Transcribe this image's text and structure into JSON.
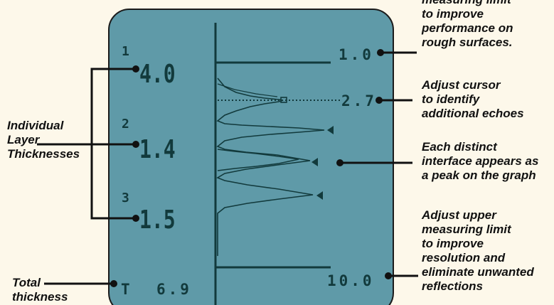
{
  "layers": [
    {
      "index_label": "1",
      "value": "4.0"
    },
    {
      "index_label": "2",
      "value": "1.4"
    },
    {
      "index_label": "3",
      "value": "1.5"
    }
  ],
  "total": {
    "symbol": "T",
    "value": "6.9"
  },
  "scale": {
    "lower_limit": "1.0",
    "cursor": "2.7",
    "upper_limit": "10.0"
  },
  "annotations": {
    "layers": [
      "Individual",
      "Layer",
      "Thicknesses"
    ],
    "total": [
      "Total",
      "thickness"
    ],
    "lower_limit": [
      "measuring limit",
      "to improve",
      "performance on",
      "rough surfaces."
    ],
    "cursor": [
      "Adjust cursor",
      "to identify",
      "additional echoes"
    ],
    "peaks": [
      "Each distinct",
      "interface appears as",
      "a peak on the graph"
    ],
    "upper_limit": [
      "Adjust upper",
      "measuring limit",
      "to improve",
      "resolution and",
      "eliminate unwanted",
      "reflections"
    ]
  },
  "colors": {
    "screen": "#5f9aa8",
    "lcd_text": "#123a3c",
    "background": "#fdf8ea",
    "ink": "#111111"
  }
}
